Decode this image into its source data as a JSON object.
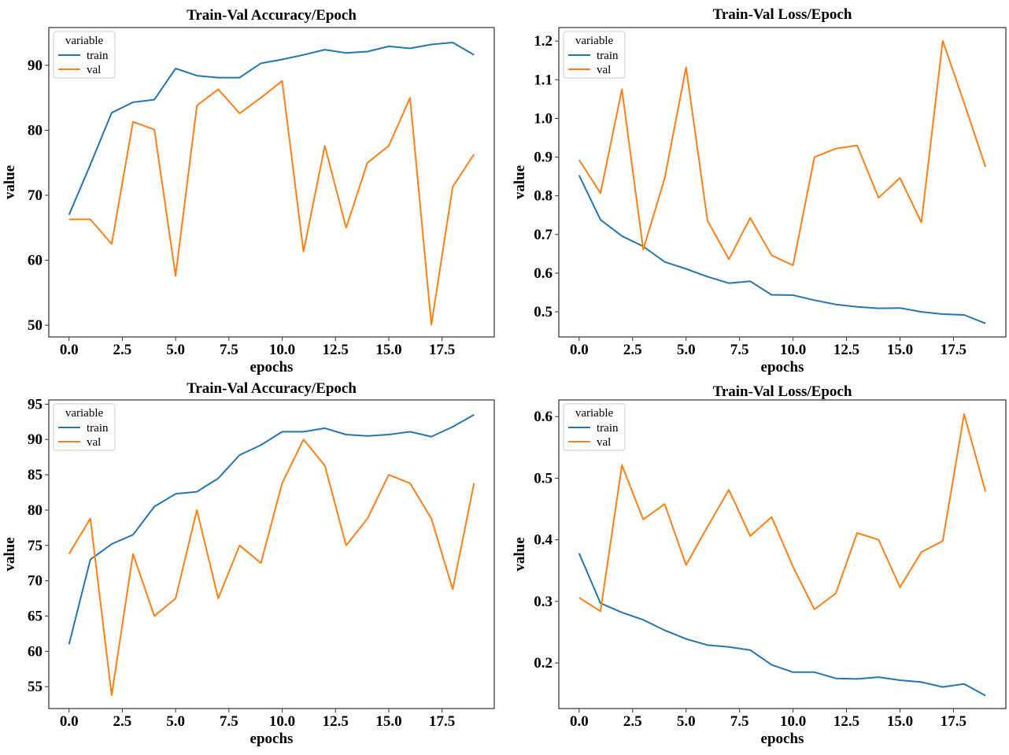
{
  "chart_data": [
    {
      "type": "line",
      "title": "Train-Val Accuracy/Epoch",
      "xlabel": "epochs",
      "ylabel": "value",
      "xlim": [
        -0.95,
        19.95
      ],
      "ylim": [
        48.2,
        95.8
      ],
      "xticks": [
        0,
        2.5,
        5,
        7.5,
        10,
        12.5,
        15,
        17.5
      ],
      "xtick_labels": [
        "0.0",
        "2.5",
        "5.0",
        "7.5",
        "10.0",
        "12.5",
        "15.0",
        "17.5"
      ],
      "yticks": [
        50,
        60,
        70,
        80,
        90
      ],
      "ytick_labels": [
        "50",
        "60",
        "70",
        "80",
        "90"
      ],
      "grid": false,
      "legend": {
        "title": "variable",
        "placement": "top-left"
      },
      "x": [
        0,
        1,
        2,
        3,
        4,
        5,
        6,
        7,
        8,
        9,
        10,
        11,
        12,
        13,
        14,
        15,
        16,
        17,
        18,
        19
      ],
      "series": [
        {
          "name": "train",
          "color": "#1f77b4",
          "values": [
            67.0,
            74.7,
            82.7,
            84.3,
            84.7,
            89.5,
            88.4,
            88.1,
            88.1,
            90.3,
            90.9,
            91.6,
            92.4,
            91.9,
            92.1,
            92.9,
            92.6,
            93.2,
            93.5,
            91.6
          ]
        },
        {
          "name": "val",
          "color": "#ff7f0e",
          "values": [
            66.3,
            66.3,
            62.5,
            81.3,
            80.1,
            57.6,
            83.8,
            86.3,
            82.6,
            85.0,
            87.6,
            61.3,
            77.6,
            65.0,
            75.0,
            77.6,
            85.0,
            50.1,
            71.3,
            76.3
          ]
        }
      ]
    },
    {
      "type": "line",
      "title": "Train-Val Loss/Epoch",
      "xlabel": "epochs",
      "ylabel": "value",
      "xlim": [
        -0.95,
        19.95
      ],
      "ylim": [
        0.435,
        1.235
      ],
      "xticks": [
        0,
        2.5,
        5,
        7.5,
        10,
        12.5,
        15,
        17.5
      ],
      "xtick_labels": [
        "0.0",
        "2.5",
        "5.0",
        "7.5",
        "10.0",
        "12.5",
        "15.0",
        "17.5"
      ],
      "yticks": [
        0.5,
        0.6,
        0.7,
        0.8,
        0.9,
        1.0,
        1.1,
        1.2
      ],
      "ytick_labels": [
        "0.5",
        "0.6",
        "0.7",
        "0.8",
        "0.9",
        "1.0",
        "1.1",
        "1.2"
      ],
      "grid": false,
      "legend": {
        "title": "variable",
        "placement": "top-left"
      },
      "x": [
        0,
        1,
        2,
        3,
        4,
        5,
        6,
        7,
        8,
        9,
        10,
        11,
        12,
        13,
        14,
        15,
        16,
        17,
        18,
        19
      ],
      "series": [
        {
          "name": "train",
          "color": "#1f77b4",
          "values": [
            0.853,
            0.738,
            0.696,
            0.669,
            0.629,
            0.611,
            0.591,
            0.574,
            0.579,
            0.544,
            0.543,
            0.53,
            0.519,
            0.513,
            0.509,
            0.51,
            0.5,
            0.494,
            0.492,
            0.47
          ]
        },
        {
          "name": "val",
          "color": "#ff7f0e",
          "values": [
            0.893,
            0.807,
            1.075,
            0.661,
            0.845,
            1.132,
            0.736,
            0.636,
            0.743,
            0.646,
            0.62,
            0.9,
            0.922,
            0.93,
            0.795,
            0.846,
            0.731,
            1.201,
            1.04,
            0.875
          ]
        }
      ]
    },
    {
      "type": "line",
      "title": "Train-Val Accuracy/Epoch",
      "xlabel": "epochs",
      "ylabel": "value",
      "xlim": [
        -0.95,
        19.95
      ],
      "ylim": [
        51.9,
        95.6
      ],
      "xticks": [
        0,
        2.5,
        5,
        7.5,
        10,
        12.5,
        15,
        17.5
      ],
      "xtick_labels": [
        "0.0",
        "2.5",
        "5.0",
        "7.5",
        "10.0",
        "12.5",
        "15.0",
        "17.5"
      ],
      "yticks": [
        55,
        60,
        65,
        70,
        75,
        80,
        85,
        90,
        95
      ],
      "ytick_labels": [
        "55",
        "60",
        "65",
        "70",
        "75",
        "80",
        "85",
        "90",
        "95"
      ],
      "grid": false,
      "legend": {
        "title": "variable",
        "placement": "top-left"
      },
      "x": [
        0,
        1,
        2,
        3,
        4,
        5,
        6,
        7,
        8,
        9,
        10,
        11,
        12,
        13,
        14,
        15,
        16,
        17,
        18,
        19
      ],
      "series": [
        {
          "name": "train",
          "color": "#1f77b4",
          "values": [
            61.0,
            73.0,
            75.2,
            76.5,
            80.5,
            82.3,
            82.6,
            84.5,
            87.8,
            89.2,
            91.1,
            91.1,
            91.6,
            90.7,
            90.5,
            90.7,
            91.1,
            90.4,
            91.8,
            93.5
          ]
        },
        {
          "name": "val",
          "color": "#ff7f0e",
          "values": [
            73.8,
            78.8,
            53.8,
            73.8,
            65.0,
            67.5,
            80.0,
            67.5,
            75.0,
            72.5,
            83.8,
            90.0,
            86.3,
            75.0,
            78.8,
            85.0,
            83.8,
            78.8,
            68.8,
            83.8
          ]
        }
      ]
    },
    {
      "type": "line",
      "title": "Train-Val Loss/Epoch",
      "xlabel": "epochs",
      "ylabel": "value",
      "xlim": [
        -0.95,
        19.95
      ],
      "ylim": [
        0.126,
        0.627
      ],
      "xticks": [
        0,
        2.5,
        5,
        7.5,
        10,
        12.5,
        15,
        17.5
      ],
      "xtick_labels": [
        "0.0",
        "2.5",
        "5.0",
        "7.5",
        "10.0",
        "12.5",
        "15.0",
        "17.5"
      ],
      "yticks": [
        0.2,
        0.3,
        0.4,
        0.5,
        0.6
      ],
      "ytick_labels": [
        "0.2",
        "0.3",
        "0.4",
        "0.5",
        "0.6"
      ],
      "grid": false,
      "legend": {
        "title": "variable",
        "placement": "top-left"
      },
      "x": [
        0,
        1,
        2,
        3,
        4,
        5,
        6,
        7,
        8,
        9,
        10,
        11,
        12,
        13,
        14,
        15,
        16,
        17,
        18,
        19
      ],
      "series": [
        {
          "name": "train",
          "color": "#1f77b4",
          "values": [
            0.378,
            0.297,
            0.282,
            0.27,
            0.253,
            0.239,
            0.229,
            0.226,
            0.221,
            0.197,
            0.185,
            0.185,
            0.175,
            0.174,
            0.177,
            0.172,
            0.169,
            0.161,
            0.166,
            0.147
          ]
        },
        {
          "name": "val",
          "color": "#ff7f0e",
          "values": [
            0.306,
            0.284,
            0.521,
            0.433,
            0.458,
            0.359,
            0.421,
            0.481,
            0.406,
            0.437,
            0.356,
            0.287,
            0.313,
            0.411,
            0.4,
            0.323,
            0.38,
            0.398,
            0.604,
            0.478
          ]
        }
      ]
    }
  ]
}
